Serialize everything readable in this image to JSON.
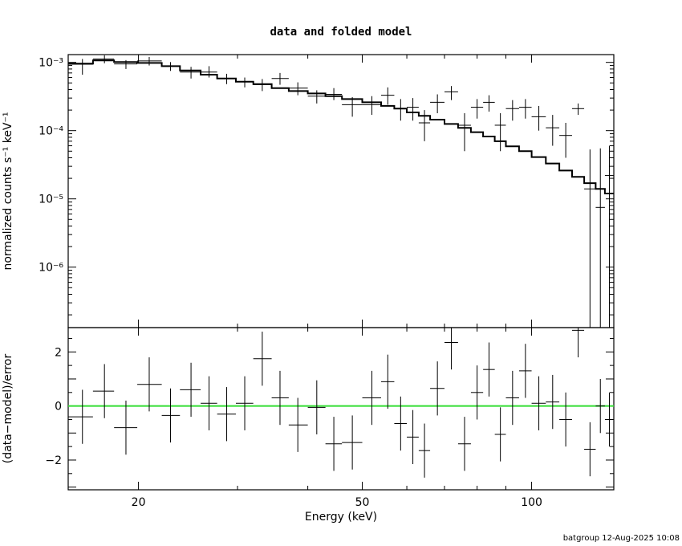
{
  "chart_data": [
    {
      "type": "step",
      "panel": "top",
      "title": "data and folded model",
      "ylabel": "normalized counts s⁻¹ keV⁻¹",
      "xscale": "log",
      "yscale": "log",
      "xlim": [
        15,
        140
      ],
      "ylim": [
        1.3e-07,
        0.0013
      ],
      "y_ticks": [
        {
          "value": 0.001,
          "label": "10⁻³"
        },
        {
          "value": 0.0001,
          "label": "10⁻⁴"
        },
        {
          "value": 1e-05,
          "label": "10⁻⁵"
        },
        {
          "value": 1e-06,
          "label": "10⁻⁶"
        }
      ],
      "series": [
        {
          "kind": "model",
          "points": [
            {
              "x0": 15.0,
              "x1": 16.6,
              "y": 0.00096
            },
            {
              "x0": 16.6,
              "x1": 18.1,
              "y": 0.00107
            },
            {
              "x0": 18.1,
              "x1": 19.9,
              "y": 0.00101
            },
            {
              "x0": 19.9,
              "x1": 22.0,
              "y": 0.00098
            },
            {
              "x0": 22.0,
              "x1": 23.7,
              "y": 0.00088
            },
            {
              "x0": 23.7,
              "x1": 25.8,
              "y": 0.00076
            },
            {
              "x0": 25.8,
              "x1": 27.6,
              "y": 0.00066
            },
            {
              "x0": 27.6,
              "x1": 29.8,
              "y": 0.00058
            },
            {
              "x0": 29.8,
              "x1": 32.0,
              "y": 0.00052
            },
            {
              "x0": 32.0,
              "x1": 34.5,
              "y": 0.00048
            },
            {
              "x0": 34.5,
              "x1": 37.0,
              "y": 0.00042
            },
            {
              "x0": 37.0,
              "x1": 40.0,
              "y": 0.00038
            },
            {
              "x0": 40.0,
              "x1": 43.0,
              "y": 0.00035
            },
            {
              "x0": 43.0,
              "x1": 46.0,
              "y": 0.00032
            },
            {
              "x0": 46.0,
              "x1": 50.0,
              "y": 0.00029
            },
            {
              "x0": 50.0,
              "x1": 54.0,
              "y": 0.00026
            },
            {
              "x0": 54.0,
              "x1": 57.0,
              "y": 0.00023
            },
            {
              "x0": 57.0,
              "x1": 60.0,
              "y": 0.00021
            },
            {
              "x0": 60.0,
              "x1": 63.0,
              "y": 0.000185
            },
            {
              "x0": 63.0,
              "x1": 66.0,
              "y": 0.000165
            },
            {
              "x0": 66.0,
              "x1": 70.0,
              "y": 0.000145
            },
            {
              "x0": 70.0,
              "x1": 74.0,
              "y": 0.000125
            },
            {
              "x0": 74.0,
              "x1": 78.0,
              "y": 0.00011
            },
            {
              "x0": 78.0,
              "x1": 82.0,
              "y": 9.5e-05
            },
            {
              "x0": 82.0,
              "x1": 86.0,
              "y": 8.2e-05
            },
            {
              "x0": 86.0,
              "x1": 90.0,
              "y": 7e-05
            },
            {
              "x0": 90.0,
              "x1": 95.0,
              "y": 5.9e-05
            },
            {
              "x0": 95.0,
              "x1": 100.0,
              "y": 5e-05
            },
            {
              "x0": 100.0,
              "x1": 106.0,
              "y": 4.1e-05
            },
            {
              "x0": 106.0,
              "x1": 112.0,
              "y": 3.3e-05
            },
            {
              "x0": 112.0,
              "x1": 118.0,
              "y": 2.6e-05
            },
            {
              "x0": 118.0,
              "x1": 124.0,
              "y": 2.1e-05
            },
            {
              "x0": 124.0,
              "x1": 130.0,
              "y": 1.7e-05
            },
            {
              "x0": 130.0,
              "x1": 135.0,
              "y": 1.4e-05
            },
            {
              "x0": 135.0,
              "x1": 140.0,
              "y": 1.2e-05
            }
          ]
        },
        {
          "kind": "data",
          "points": [
            {
              "x": 15.9,
              "y": 0.00094,
              "xlo": 15.0,
              "xhi": 16.6,
              "ylo": 0.00066,
              "yhi": 0.00112
            },
            {
              "x": 17.4,
              "y": 0.00112,
              "xlo": 16.6,
              "xhi": 18.1,
              "ylo": 0.00097,
              "yhi": 0.00127
            },
            {
              "x": 19.0,
              "y": 0.00095,
              "xlo": 18.1,
              "xhi": 19.9,
              "ylo": 0.0008,
              "yhi": 0.00108
            },
            {
              "x": 20.9,
              "y": 0.00105,
              "xlo": 19.9,
              "xhi": 22.0,
              "ylo": 0.0009,
              "yhi": 0.0012
            },
            {
              "x": 22.8,
              "y": 0.00088,
              "xlo": 22.0,
              "xhi": 23.7,
              "ylo": 0.00075,
              "yhi": 0.00101
            },
            {
              "x": 24.8,
              "y": 0.00072,
              "xlo": 23.7,
              "xhi": 25.8,
              "ylo": 0.00058,
              "yhi": 0.00086
            },
            {
              "x": 26.7,
              "y": 0.00072,
              "xlo": 25.8,
              "xhi": 27.6,
              "ylo": 0.0006,
              "yhi": 0.00088
            },
            {
              "x": 28.7,
              "y": 0.00058,
              "xlo": 27.6,
              "xhi": 29.8,
              "ylo": 0.00048,
              "yhi": 0.00068
            },
            {
              "x": 30.9,
              "y": 0.00052,
              "xlo": 29.8,
              "xhi": 32.0,
              "ylo": 0.00043,
              "yhi": 0.0006
            },
            {
              "x": 33.2,
              "y": 0.00047,
              "xlo": 32.0,
              "xhi": 34.5,
              "ylo": 0.00038,
              "yhi": 0.00057
            },
            {
              "x": 35.7,
              "y": 0.00058,
              "xlo": 34.5,
              "xhi": 37.0,
              "ylo": 0.00047,
              "yhi": 0.0007
            },
            {
              "x": 38.4,
              "y": 0.00042,
              "xlo": 37.0,
              "xhi": 40.0,
              "ylo": 0.00033,
              "yhi": 0.00051
            },
            {
              "x": 41.5,
              "y": 0.00032,
              "xlo": 40.0,
              "xhi": 43.0,
              "ylo": 0.00025,
              "yhi": 0.00039
            },
            {
              "x": 44.5,
              "y": 0.00034,
              "xlo": 43.0,
              "xhi": 46.0,
              "ylo": 0.00028,
              "yhi": 0.00042
            },
            {
              "x": 48.0,
              "y": 0.00024,
              "xlo": 46.0,
              "xhi": 50.0,
              "ylo": 0.00016,
              "yhi": 0.00031
            },
            {
              "x": 52.0,
              "y": 0.00024,
              "xlo": 50.0,
              "xhi": 54.0,
              "ylo": 0.00017,
              "yhi": 0.00032
            },
            {
              "x": 55.5,
              "y": 0.00033,
              "xlo": 54.0,
              "xhi": 57.0,
              "ylo": 0.00024,
              "yhi": 0.00043
            },
            {
              "x": 58.5,
              "y": 0.00021,
              "xlo": 57.0,
              "xhi": 60.0,
              "ylo": 0.00014,
              "yhi": 0.00029
            },
            {
              "x": 61.5,
              "y": 0.00022,
              "xlo": 60.0,
              "xhi": 63.0,
              "ylo": 0.00014,
              "yhi": 0.0003
            },
            {
              "x": 64.5,
              "y": 0.00013,
              "xlo": 63.0,
              "xhi": 66.0,
              "ylo": 7e-05,
              "yhi": 0.0002
            },
            {
              "x": 68.0,
              "y": 0.00026,
              "xlo": 66.0,
              "xhi": 70.0,
              "ylo": 0.00018,
              "yhi": 0.00034
            },
            {
              "x": 72.0,
              "y": 0.00037,
              "xlo": 70.0,
              "xhi": 74.0,
              "ylo": 0.00028,
              "yhi": 0.00045
            },
            {
              "x": 76.0,
              "y": 0.00012,
              "xlo": 74.0,
              "xhi": 78.0,
              "ylo": 5e-05,
              "yhi": 0.00018
            },
            {
              "x": 80.0,
              "y": 0.00022,
              "xlo": 78.0,
              "xhi": 82.0,
              "ylo": 0.00015,
              "yhi": 0.00029
            },
            {
              "x": 84.0,
              "y": 0.00026,
              "xlo": 82.0,
              "xhi": 86.0,
              "ylo": 0.00019,
              "yhi": 0.00033
            },
            {
              "x": 88.0,
              "y": 0.00012,
              "xlo": 86.0,
              "xhi": 90.0,
              "ylo": 5e-05,
              "yhi": 0.00018
            },
            {
              "x": 92.5,
              "y": 0.00021,
              "xlo": 90.0,
              "xhi": 95.0,
              "ylo": 0.00014,
              "yhi": 0.00028
            },
            {
              "x": 97.5,
              "y": 0.00022,
              "xlo": 95.0,
              "xhi": 100.0,
              "ylo": 0.00015,
              "yhi": 0.00029
            },
            {
              "x": 103.0,
              "y": 0.00016,
              "xlo": 100.0,
              "xhi": 106.0,
              "ylo": 0.0001,
              "yhi": 0.00023
            },
            {
              "x": 109.0,
              "y": 0.00011,
              "xlo": 106.0,
              "xhi": 112.0,
              "ylo": 6e-05,
              "yhi": 0.00017
            },
            {
              "x": 115.0,
              "y": 8.5e-05,
              "xlo": 112.0,
              "xhi": 118.0,
              "ylo": 4e-05,
              "yhi": 0.00013
            },
            {
              "x": 121.0,
              "y": 0.00021,
              "xlo": 118.0,
              "xhi": 124.0,
              "ylo": 0.00017,
              "yhi": 0.00025
            },
            {
              "x": 127.0,
              "y": 1.4e-05,
              "xlo": 124.0,
              "xhi": 130.0,
              "ylo": 1.3e-07,
              "yhi": 5.3e-05
            },
            {
              "x": 132.5,
              "y": 7.5e-06,
              "xlo": 130.0,
              "xhi": 135.0,
              "ylo": 1.3e-07,
              "yhi": 5.5e-05
            },
            {
              "x": 137.5,
              "y": 2.2e-05,
              "xlo": 135.0,
              "xhi": 140.0,
              "ylo": 1.3e-07,
              "yhi": 6e-05
            }
          ]
        }
      ]
    },
    {
      "type": "scatter",
      "panel": "bottom",
      "xlabel": "Energy (keV)",
      "ylabel": "(data−model)/error",
      "xscale": "log",
      "xlim": [
        15,
        140
      ],
      "ylim": [
        -3.1,
        2.9
      ],
      "x_ticks": [
        {
          "value": 20,
          "label": "20"
        },
        {
          "value": 50,
          "label": "50"
        },
        {
          "value": 100,
          "label": "100"
        }
      ],
      "y_ticks": [
        {
          "value": 2,
          "label": "2"
        },
        {
          "value": 0,
          "label": "0"
        },
        {
          "value": -2,
          "label": "−2"
        }
      ],
      "reference_line": {
        "y": 0,
        "color": "#33dd33"
      },
      "points": [
        {
          "x": 15.9,
          "y": -0.4,
          "xlo": 15.0,
          "xhi": 16.6
        },
        {
          "x": 17.4,
          "y": 0.55,
          "xlo": 16.6,
          "xhi": 18.1
        },
        {
          "x": 19.0,
          "y": -0.8,
          "xlo": 18.1,
          "xhi": 19.9
        },
        {
          "x": 20.9,
          "y": 0.8,
          "xlo": 19.9,
          "xhi": 22.0
        },
        {
          "x": 22.8,
          "y": -0.35,
          "xlo": 22.0,
          "xhi": 23.7
        },
        {
          "x": 24.8,
          "y": 0.6,
          "xlo": 23.7,
          "xhi": 25.8
        },
        {
          "x": 26.7,
          "y": 0.1,
          "xlo": 25.8,
          "xhi": 27.6
        },
        {
          "x": 28.7,
          "y": -0.3,
          "xlo": 27.6,
          "xhi": 29.8
        },
        {
          "x": 30.9,
          "y": 0.1,
          "xlo": 29.8,
          "xhi": 32.0
        },
        {
          "x": 33.2,
          "y": 1.75,
          "xlo": 32.0,
          "xhi": 34.5
        },
        {
          "x": 35.7,
          "y": 0.3,
          "xlo": 34.5,
          "xhi": 37.0
        },
        {
          "x": 38.4,
          "y": -0.7,
          "xlo": 37.0,
          "xhi": 40.0
        },
        {
          "x": 41.5,
          "y": -0.05,
          "xlo": 40.0,
          "xhi": 43.0
        },
        {
          "x": 44.5,
          "y": -1.4,
          "xlo": 43.0,
          "xhi": 46.0
        },
        {
          "x": 48.0,
          "y": -1.35,
          "xlo": 46.0,
          "xhi": 50.0
        },
        {
          "x": 52.0,
          "y": 0.3,
          "xlo": 50.0,
          "xhi": 54.0
        },
        {
          "x": 55.5,
          "y": 0.9,
          "xlo": 54.0,
          "xhi": 57.0
        },
        {
          "x": 58.5,
          "y": -0.65,
          "xlo": 57.0,
          "xhi": 60.0
        },
        {
          "x": 61.5,
          "y": -1.15,
          "xlo": 60.0,
          "xhi": 63.0
        },
        {
          "x": 64.5,
          "y": -1.65,
          "xlo": 63.0,
          "xhi": 66.0
        },
        {
          "x": 68.0,
          "y": 0.65,
          "xlo": 66.0,
          "xhi": 70.0
        },
        {
          "x": 72.0,
          "y": 2.35,
          "xlo": 70.0,
          "xhi": 74.0
        },
        {
          "x": 76.0,
          "y": -1.4,
          "xlo": 74.0,
          "xhi": 78.0
        },
        {
          "x": 80.0,
          "y": 0.5,
          "xlo": 78.0,
          "xhi": 82.0
        },
        {
          "x": 84.0,
          "y": 1.35,
          "xlo": 82.0,
          "xhi": 86.0
        },
        {
          "x": 88.0,
          "y": -1.05,
          "xlo": 86.0,
          "xhi": 90.0
        },
        {
          "x": 92.5,
          "y": 0.3,
          "xlo": 90.0,
          "xhi": 95.0
        },
        {
          "x": 97.5,
          "y": 1.3,
          "xlo": 95.0,
          "xhi": 100.0
        },
        {
          "x": 103.0,
          "y": 0.1,
          "xlo": 100.0,
          "xhi": 106.0
        },
        {
          "x": 109.0,
          "y": 0.15,
          "xlo": 106.0,
          "xhi": 112.0
        },
        {
          "x": 115.0,
          "y": -0.5,
          "xlo": 112.0,
          "xhi": 118.0
        },
        {
          "x": 121.0,
          "y": 2.8,
          "xlo": 118.0,
          "xhi": 124.0
        },
        {
          "x": 127.0,
          "y": -1.6,
          "xlo": 124.0,
          "xhi": 130.0
        },
        {
          "x": 132.5,
          "y": 0.0,
          "xlo": 130.0,
          "xhi": 135.0
        },
        {
          "x": 137.5,
          "y": -0.5,
          "xlo": 135.0,
          "xhi": 140.0
        }
      ]
    }
  ],
  "footer": {
    "stamp": "batgroup 12-Aug-2025 10:08"
  }
}
